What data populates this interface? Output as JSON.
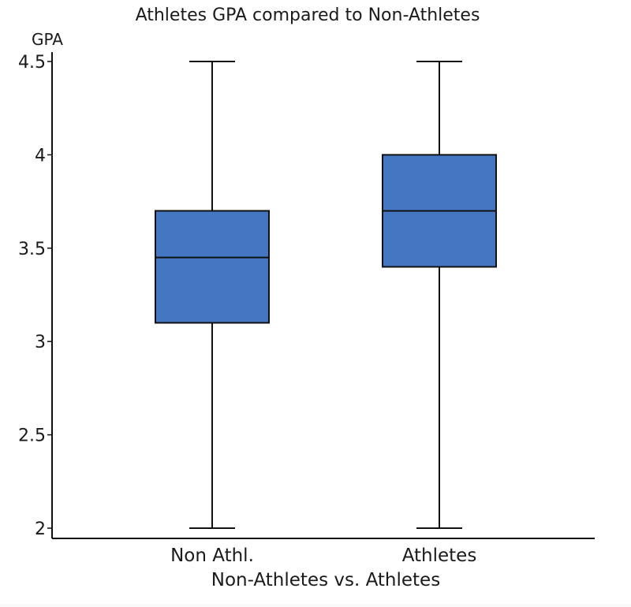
{
  "chart_data": {
    "type": "box",
    "title": "Athletes GPA compared to Non-Athletes",
    "xlabel": "Non-Athletes vs. Athletes",
    "ylabel": "GPA",
    "ylim": [
      1.96,
      4.55
    ],
    "yticks": [
      2,
      2.5,
      3,
      3.5,
      4,
      4.5
    ],
    "ytick_labels": [
      "2",
      "2.5",
      "3",
      "3.5",
      "4",
      "4.5"
    ],
    "categories": [
      "Non Athl.",
      "Athletes"
    ],
    "boxes": [
      {
        "min": 2.0,
        "q1": 3.1,
        "median": 3.45,
        "q3": 3.7,
        "max": 4.5
      },
      {
        "min": 2.0,
        "q1": 3.4,
        "median": 3.7,
        "q3": 4.0,
        "max": 4.5
      }
    ],
    "box_color": "#4477c2",
    "line_color": "#111111",
    "grid": false
  }
}
